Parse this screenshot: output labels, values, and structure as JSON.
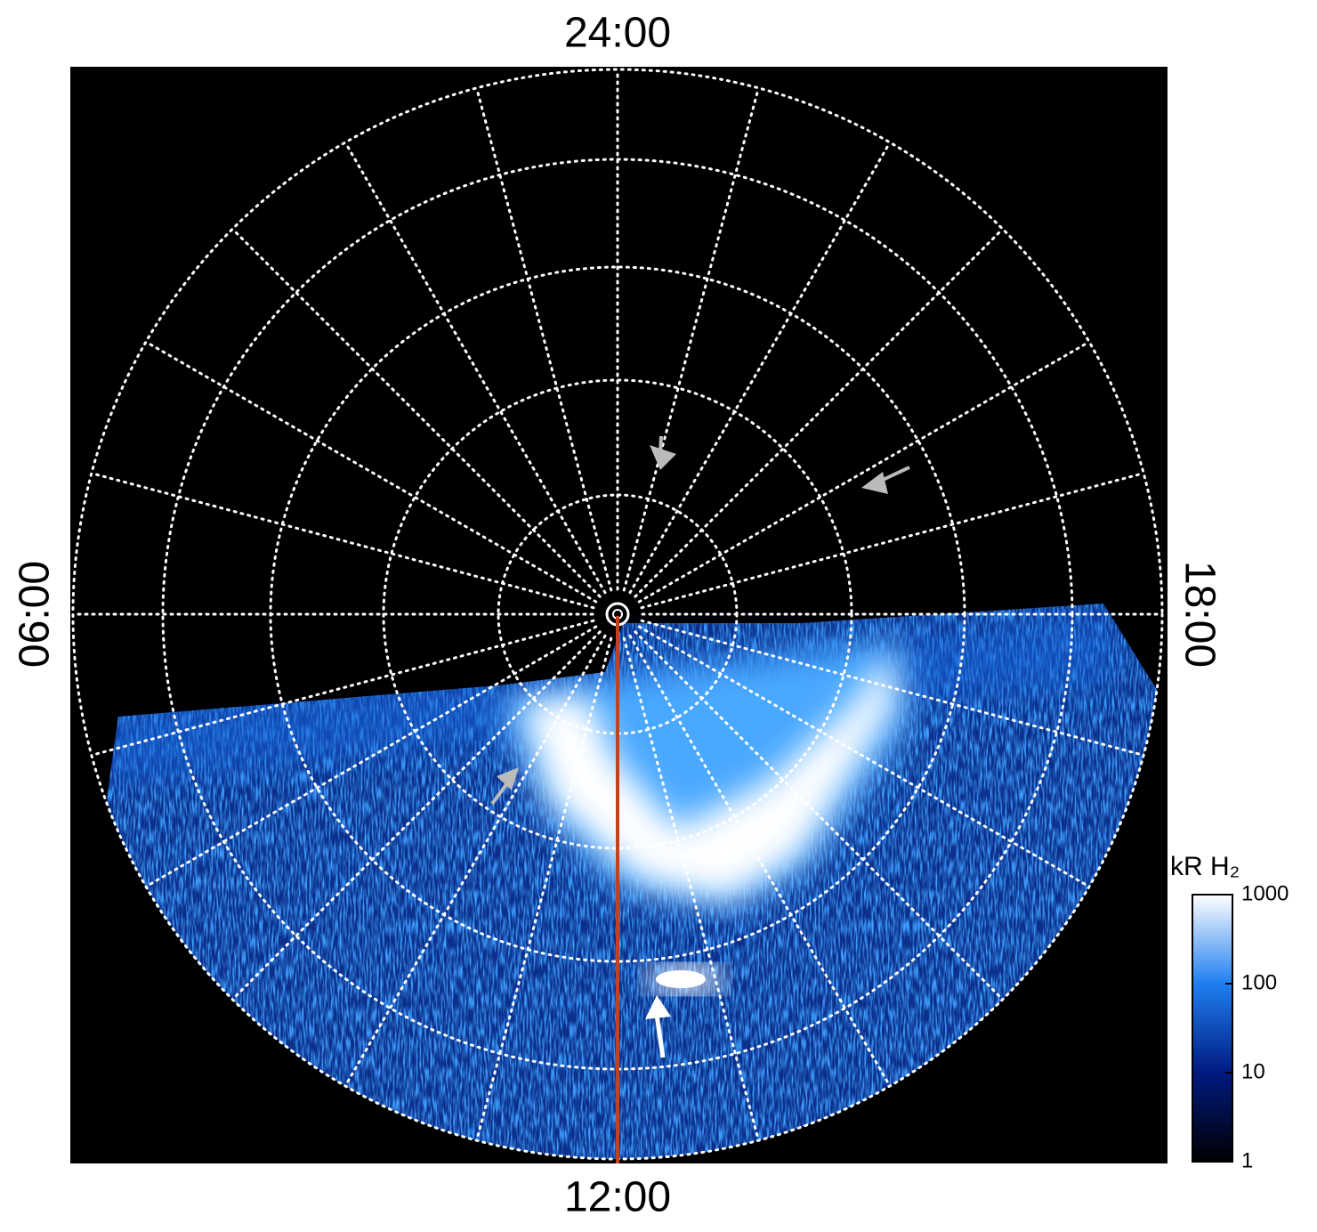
{
  "chart_data": {
    "type": "polar-image",
    "hour_labels": [
      "24:00",
      "06:00",
      "12:00",
      "18:00"
    ],
    "colorbar": {
      "label": "kR H₂",
      "lim": [
        1,
        1000
      ],
      "ticks": [
        1,
        10,
        100,
        1000
      ],
      "log": true,
      "colors": [
        "#000000",
        "#001a80",
        "#1f7ff0",
        "#ffffff"
      ]
    }
  }
}
